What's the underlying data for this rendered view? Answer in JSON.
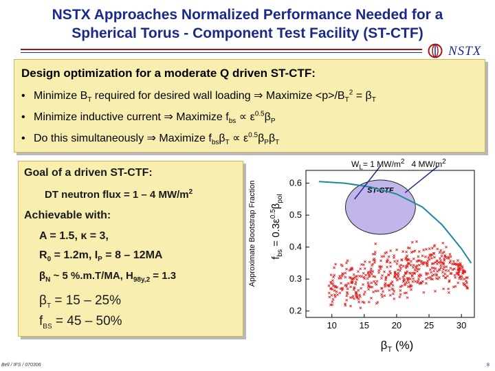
{
  "title": {
    "line1": "NSTX Approaches Normalized Performance Needed for a",
    "line2": "Spherical Torus - Component Test Facility (ST-CTF)"
  },
  "logo": {
    "text": "NSTX",
    "icon": "nstx-logo-icon"
  },
  "design": {
    "heading": "Design optimization for a moderate Q driven ST-CTF:",
    "bullets": [
      {
        "pre": "Minimize B",
        "sub": "T",
        "post": " required for desired wall loading ⇒ Maximize <p>/B",
        "sub2": "T",
        "sup": "2",
        "post2": " = β",
        "sub3": "T"
      },
      {
        "pre": "Minimize inductive current  ⇒ Maximize f",
        "sub": "bs",
        "post": " ∝ ε",
        "sup": "0.5",
        "post2": "β",
        "sub3": "P"
      },
      {
        "pre": "Do this simultaneously ⇒ Maximize f",
        "sub": "bs",
        "post": "β",
        "sub2": "T",
        "post2": " ∝ ε",
        "sup": "0.5",
        "post3": "β",
        "sub3": "P",
        "post4": "β",
        "sub4": "T"
      }
    ]
  },
  "goal": {
    "line1": "Goal of a driven ST-CTF:",
    "line2": "DT neutron flux = 1 – 4 MW/m",
    "line2_sup": "2",
    "line3": "Achievable with:",
    "line4": "A = 1.5, κ = 3,",
    "line5_a": "R",
    "line5_sub": "0",
    "line5_b": " = 1.2m, I",
    "line5_sub2": "P",
    "line5_c": " = 8 – 12MA",
    "line6_a": "β",
    "line6_sub": "N",
    "line6_b": " ~ 5 %.m.T/MA, H",
    "line6_sub2": "98y,2",
    "line6_c": " = 1.3",
    "line7_a": "β",
    "line7_sub": "T",
    "line7_b": " = 15 – 25%",
    "line8_a": "f",
    "line8_sub": "BS",
    "line8_b": " = 45 – 50%"
  },
  "axis_labels": {
    "y_outer": "Approximate Bootstrap Fraction",
    "y_inner_a": "f",
    "y_inner_sub": "bs",
    "y_inner_b": " = 0.3ε",
    "y_inner_sup": "0.5",
    "y_inner_c": "β",
    "y_inner_sub2": "pol",
    "x_a": "β",
    "x_sub": "T",
    "x_b": " (%)"
  },
  "wall_loading": {
    "label1_a": "W",
    "label1_sub": "L",
    "label1_b": "= 1 MW/m",
    "label1_sup": "2",
    "label2_a": "4 MW/m",
    "label2_sup": "2"
  },
  "chart_data": {
    "type": "scatter",
    "x_ticks": [
      "10",
      "15",
      "20",
      "25",
      "30"
    ],
    "y_ticks": [
      "0.2",
      "0.3",
      "0.4",
      "0.5",
      "0.6"
    ],
    "xlim": [
      6,
      32
    ],
    "ylim": [
      0.18,
      0.64
    ],
    "region_label": "ST-CTF",
    "region": {
      "x_center": 17.5,
      "y_center": 0.525,
      "x_half_width": 5.4,
      "y_half_height": 0.085
    },
    "boundary_curve": [
      [
        8,
        0.605
      ],
      [
        12,
        0.6
      ],
      [
        16,
        0.588
      ],
      [
        20,
        0.566
      ],
      [
        24,
        0.525
      ],
      [
        27,
        0.47
      ],
      [
        30,
        0.395
      ],
      [
        31.5,
        0.35
      ]
    ],
    "colors": {
      "points": "#e02020",
      "curve": "#1a8a9a",
      "region_fill": "#b7a8e6",
      "axis": "#000000"
    }
  },
  "footer": {
    "left": "Bell / IFS / 070306",
    "right": "8"
  }
}
